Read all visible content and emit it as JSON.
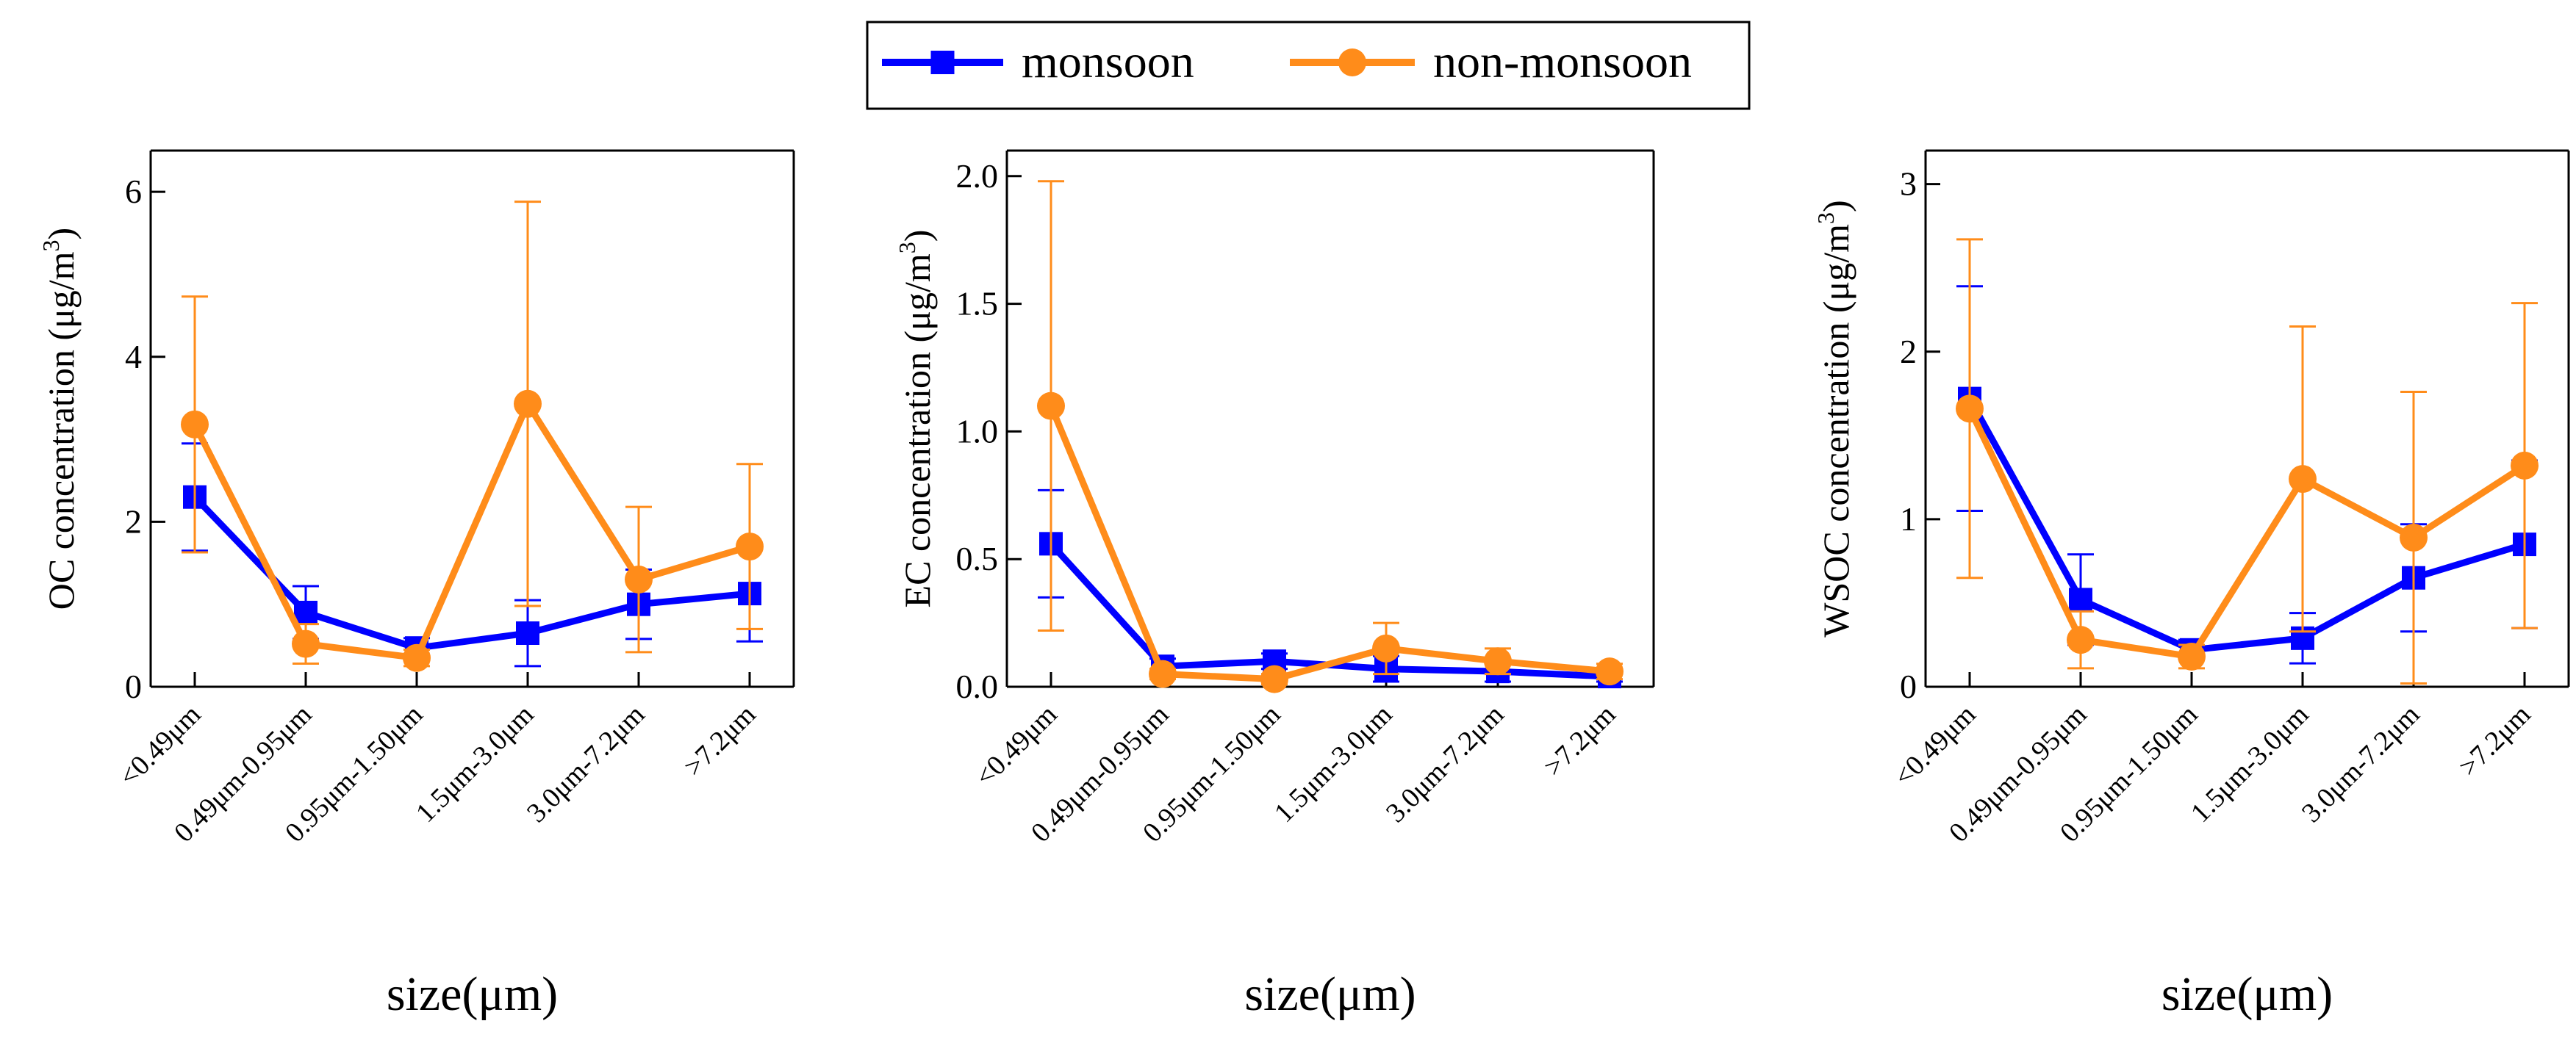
{
  "legend": {
    "items": [
      {
        "name": "monsoon",
        "color": "#0000ff",
        "marker": "square"
      },
      {
        "name": "non-monsoon",
        "color": "#ff8c1a",
        "marker": "circle"
      }
    ]
  },
  "chart_data": [
    {
      "type": "line",
      "categories": [
        "<0.49μm",
        "0.49μm-0.95μm",
        "0.95μm-1.50μm",
        "1.5μm-3.0μm",
        "3.0μm-7.2μm",
        ">7.2μm"
      ],
      "ylabel_main": "OC concentration (μg/m",
      "ylabel_sup": "3",
      "ylabel_tail": ")",
      "xlabel": "size(μm)",
      "ylim": [
        0,
        6.5
      ],
      "yticks": [
        0,
        2,
        4,
        6
      ],
      "ytick_labels": [
        "0",
        "2",
        "4",
        "6"
      ],
      "series": [
        {
          "name": "monsoon",
          "values": [
            2.3,
            0.9,
            0.47,
            0.65,
            1.0,
            1.13
          ],
          "err": [
            0.65,
            0.32,
            0.12,
            0.4,
            0.42,
            0.58
          ]
        },
        {
          "name": "non-monsoon",
          "values": [
            3.18,
            0.52,
            0.35,
            3.43,
            1.3,
            1.7
          ],
          "err": [
            1.55,
            0.24,
            0.1,
            2.45,
            0.88,
            1.0
          ]
        }
      ]
    },
    {
      "type": "line",
      "categories": [
        "<0.49μm",
        "0.49μm-0.95μm",
        "0.95μm-1.50μm",
        "1.5μm-3.0μm",
        "3.0μm-7.2μm",
        ">7.2μm"
      ],
      "ylabel_main": "EC concentration (μg/m",
      "ylabel_sup": "3",
      "ylabel_tail": ")",
      "xlabel": "size(μm)",
      "ylim": [
        0,
        2.1
      ],
      "yticks": [
        0,
        0.5,
        1.0,
        1.5,
        2.0
      ],
      "ytick_labels": [
        "0.0",
        "0.5",
        "1.0",
        "1.5",
        "2.0"
      ],
      "series": [
        {
          "name": "monsoon",
          "values": [
            0.56,
            0.08,
            0.1,
            0.07,
            0.06,
            0.04
          ],
          "err": [
            0.21,
            0.03,
            0.03,
            0.05,
            0.04,
            0.02
          ]
        },
        {
          "name": "non-monsoon",
          "values": [
            1.1,
            0.05,
            0.03,
            0.15,
            0.1,
            0.06
          ],
          "err": [
            0.88,
            0.02,
            0.02,
            0.1,
            0.05,
            0.03
          ]
        }
      ]
    },
    {
      "type": "line",
      "categories": [
        "<0.49μm",
        "0.49μm-0.95μm",
        "0.95μm-1.50μm",
        "1.5μm-3.0μm",
        "3.0μm-7.2μm",
        ">7.2μm"
      ],
      "ylabel_main": "WSOC concentration (μg/m",
      "ylabel_sup": "3",
      "ylabel_tail": ")",
      "xlabel": "size(μm)",
      "ylim": [
        0,
        3.2
      ],
      "yticks": [
        0,
        1,
        2,
        3
      ],
      "ytick_labels": [
        "0",
        "1",
        "2",
        "3"
      ],
      "series": [
        {
          "name": "monsoon",
          "values": [
            1.72,
            0.52,
            0.22,
            0.29,
            0.65,
            0.85
          ],
          "err": [
            0.67,
            0.27,
            0.06,
            0.15,
            0.32,
            0.5
          ]
        },
        {
          "name": "non-monsoon",
          "values": [
            1.66,
            0.28,
            0.18,
            1.24,
            0.89,
            1.32
          ],
          "err": [
            1.01,
            0.17,
            0.07,
            0.91,
            0.87,
            0.97
          ]
        }
      ]
    }
  ]
}
